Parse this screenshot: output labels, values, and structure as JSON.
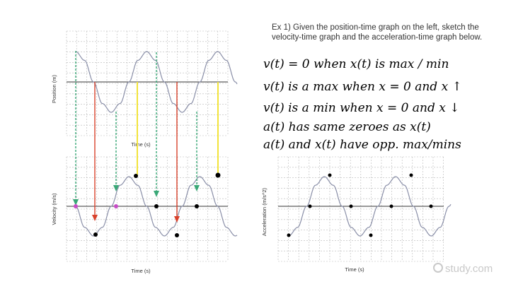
{
  "prompt": {
    "text": "Ex 1) Given the position-time graph on the left, sketch the velocity-time graph and the acceleration-time graph below."
  },
  "notes": [
    "v(t) = 0 when x(t) is max / min",
    "v(t) is a max when x = 0 and x ↑",
    "v(t) is a min when x = 0 and x ↓",
    "a(t) has same zeroes as x(t)",
    "a(t) and x(t) have opp. max/mins"
  ],
  "graphs": {
    "position": {
      "ylabel": "Position (m)",
      "xlabel": "Time (s)"
    },
    "velocity": {
      "ylabel": "Velocity (m/s)",
      "xlabel": "Time (s)"
    },
    "acceleration": {
      "ylabel": "Acceleration (m/s^2)",
      "xlabel": "Time (s)"
    }
  },
  "watermark": "study.com",
  "colors": {
    "curve": "#8a8fa8",
    "grid": "#b7b7b7",
    "axis": "#333333",
    "ink": "#000000",
    "arrow_green": "#3aa877",
    "arrow_red": "#d9412b",
    "arrow_yellow": "#f2e33a",
    "dot_magenta": "#c64cc6"
  },
  "chart_data": [
    {
      "type": "line",
      "name": "position-time",
      "x": [
        0,
        0.25,
        0.5,
        0.75,
        1,
        1.25,
        1.5,
        1.75,
        2,
        2.25,
        2.5,
        2.75,
        3,
        3.25,
        3.5,
        3.75,
        4,
        4.25,
        4.5,
        4.75,
        5
      ],
      "y": [
        1,
        0.71,
        0,
        -0.71,
        -1,
        -0.71,
        0,
        0.71,
        1,
        0.71,
        0,
        -0.71,
        -1,
        -0.71,
        0,
        0.71,
        1,
        0.71,
        0,
        -0.71,
        -1
      ],
      "xlabel": "Time (s)",
      "ylabel": "Position (m)",
      "grid": true
    },
    {
      "type": "line",
      "name": "velocity-time",
      "x": [
        0,
        0.25,
        0.5,
        0.75,
        1,
        1.25,
        1.5,
        1.75,
        2,
        2.25,
        2.5,
        2.75,
        3,
        3.25,
        3.5,
        3.75,
        4,
        4.25,
        4.5,
        4.75,
        5
      ],
      "y": [
        0,
        -0.71,
        -1,
        -0.71,
        0,
        0.71,
        1,
        0.71,
        0,
        -0.71,
        -1,
        -0.71,
        0,
        0.71,
        1,
        0.71,
        0,
        -0.71,
        -1,
        -0.71,
        0
      ],
      "xlabel": "Time (s)",
      "ylabel": "Velocity (m/s)",
      "grid": true
    },
    {
      "type": "line",
      "name": "acceleration-time",
      "x": [
        0,
        0.25,
        0.5,
        0.75,
        1,
        1.25,
        1.5,
        1.75,
        2,
        2.25,
        2.5,
        2.75,
        3,
        3.25,
        3.5,
        3.75,
        4,
        4.25,
        4.5,
        4.75,
        5
      ],
      "y": [
        -1,
        -0.71,
        0,
        0.71,
        1,
        0.71,
        0,
        -0.71,
        -1,
        -0.71,
        0,
        0.71,
        1,
        0.71,
        0,
        -0.71,
        -1,
        -0.71,
        0,
        0.71,
        1
      ],
      "xlabel": "Time (s)",
      "ylabel": "Acceleration (m/s^2)",
      "grid": true
    }
  ]
}
